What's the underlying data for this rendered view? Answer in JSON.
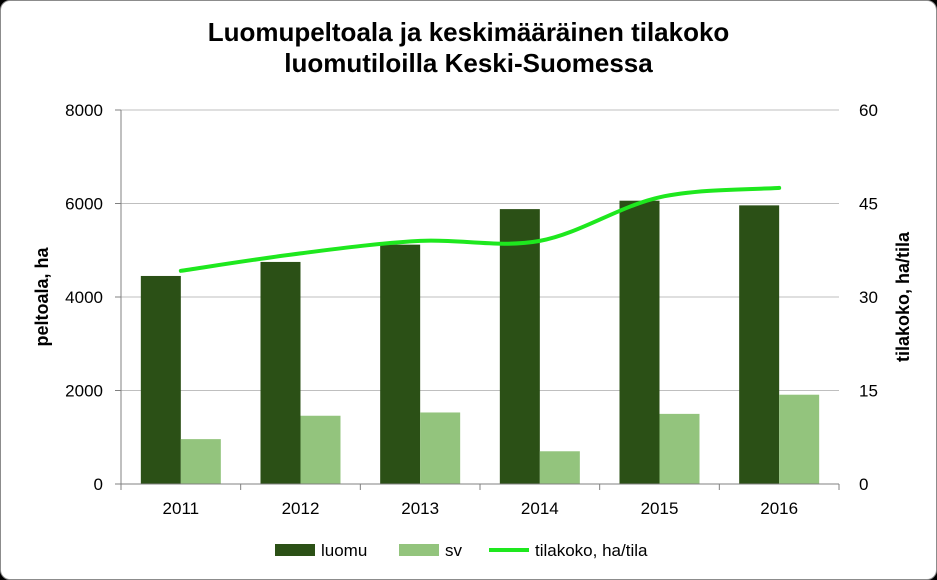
{
  "chart_data": {
    "type": "bar",
    "title_lines": [
      "Luomupeltoala ja keskimääräinen tilakoko",
      "luomutiloilla Keski-Suomessa"
    ],
    "categories": [
      "2011",
      "2012",
      "2013",
      "2014",
      "2015",
      "2016"
    ],
    "series": [
      {
        "name": "luomu",
        "type": "bar",
        "axis": "left",
        "color": "#2b5016",
        "values": [
          4450,
          4750,
          5120,
          5880,
          6060,
          5960
        ]
      },
      {
        "name": "sv",
        "type": "bar",
        "axis": "left",
        "color": "#93c47d",
        "values": [
          960,
          1460,
          1530,
          700,
          1500,
          1910
        ]
      },
      {
        "name": "tilakoko, ha/tila",
        "type": "line",
        "axis": "right",
        "color": "#1ee81e",
        "values": [
          34.2,
          37.0,
          39.0,
          39.0,
          46.0,
          47.5
        ]
      }
    ],
    "ylabel": "peltoala, ha",
    "ylim": [
      0,
      8000
    ],
    "yticks": [
      "0",
      "2000",
      "4000",
      "6000",
      "8000"
    ],
    "y2label": "tilakoko, ha/tila",
    "y2lim": [
      0,
      60
    ],
    "y2ticks": [
      "0",
      "15",
      "30",
      "45",
      "60"
    ],
    "grid": true,
    "legend": "bottom"
  }
}
